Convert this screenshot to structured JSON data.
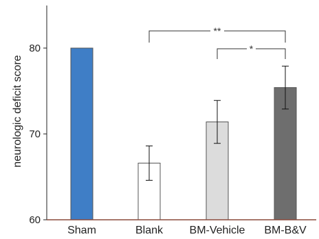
{
  "chart_data": {
    "type": "bar",
    "title": "",
    "xlabel": "",
    "ylabel": "neurologic deficit score",
    "ylim": [
      60,
      85
    ],
    "yticks": [
      "60",
      "70",
      "80"
    ],
    "grid": false,
    "categories": [
      "Sham",
      "Blank",
      "BM-Vehicle",
      "BM-B&V"
    ],
    "values": [
      80,
      66.6,
      71.4,
      75.4
    ],
    "errors": [
      0,
      2.0,
      2.5,
      2.5
    ],
    "colors": [
      "#3f7ec6",
      "#ffffff",
      "#dcdcdc",
      "#6e6e6e"
    ],
    "edge_color": "#555555",
    "axis_color": "#8b4a3c",
    "significance": [
      {
        "from": "Blank",
        "to": "BM-B&V",
        "label": "**"
      },
      {
        "from": "BM-Vehicle",
        "to": "BM-B&V",
        "label": "*"
      }
    ]
  }
}
